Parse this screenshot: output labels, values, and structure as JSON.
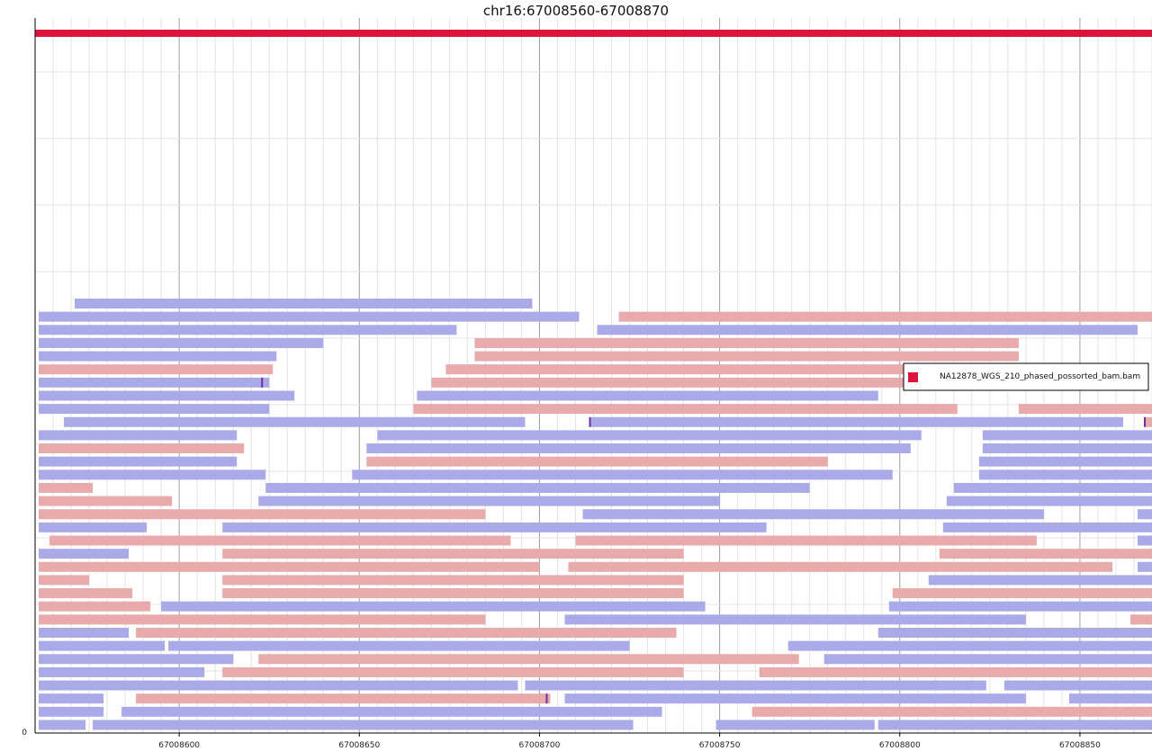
{
  "chart_data": {
    "type": "genome-read-pileup",
    "title": "chr16:67008560-67008870",
    "x_range": [
      67008560,
      67008870
    ],
    "x_ticks": [
      67008600,
      67008650,
      67008700,
      67008750,
      67008800,
      67008850
    ],
    "y_tick_label": "0",
    "legend": {
      "entries": [
        "NA12878_WGS_210_phased_possorted_bam.bam"
      ],
      "position": "right"
    },
    "colors": {
      "coverage": "#dc143c",
      "forward": "#aaaae8",
      "reverse": "#e8aaaa",
      "mismatch": "#7030a0",
      "grid_major": "#9e9e9e",
      "grid_minor": "#e4e4e4"
    },
    "coverage_span": [
      67008560,
      67008870
    ],
    "reads": [
      {
        "row": 0,
        "start": 67008571,
        "end": 67008698,
        "strand": "+"
      },
      {
        "row": 1,
        "start": 67008561,
        "end": 67008711,
        "strand": "+"
      },
      {
        "row": 1,
        "start": 67008722,
        "end": 67008870,
        "strand": "-"
      },
      {
        "row": 2,
        "start": 67008561,
        "end": 67008677,
        "strand": "+"
      },
      {
        "row": 2,
        "start": 67008716,
        "end": 67008866,
        "strand": "+"
      },
      {
        "row": 3,
        "start": 67008561,
        "end": 67008640,
        "strand": "+"
      },
      {
        "row": 3,
        "start": 67008682,
        "end": 67008833,
        "strand": "-"
      },
      {
        "row": 4,
        "start": 67008561,
        "end": 67008627,
        "strand": "+"
      },
      {
        "row": 4,
        "start": 67008682,
        "end": 67008833,
        "strand": "-"
      },
      {
        "row": 5,
        "start": 67008561,
        "end": 67008626,
        "strand": "-"
      },
      {
        "row": 5,
        "start": 67008674,
        "end": 67008816,
        "strand": "-"
      },
      {
        "row": 6,
        "start": 67008561,
        "end": 67008625,
        "strand": "+"
      },
      {
        "row": 6,
        "start": 67008670,
        "end": 67008821,
        "strand": "-"
      },
      {
        "row": 7,
        "start": 67008561,
        "end": 67008632,
        "strand": "+"
      },
      {
        "row": 7,
        "start": 67008666,
        "end": 67008794,
        "strand": "+"
      },
      {
        "row": 8,
        "start": 67008561,
        "end": 67008625,
        "strand": "+"
      },
      {
        "row": 8,
        "start": 67008665,
        "end": 67008816,
        "strand": "-"
      },
      {
        "row": 8,
        "start": 67008833,
        "end": 67008870,
        "strand": "-"
      },
      {
        "row": 9,
        "start": 67008568,
        "end": 67008696,
        "strand": "+"
      },
      {
        "row": 9,
        "start": 67008714,
        "end": 67008862,
        "strand": "+"
      },
      {
        "row": 9,
        "start": 67008868,
        "end": 67008870,
        "strand": "-"
      },
      {
        "row": 10,
        "start": 67008561,
        "end": 67008616,
        "strand": "+"
      },
      {
        "row": 10,
        "start": 67008655,
        "end": 67008806,
        "strand": "+"
      },
      {
        "row": 10,
        "start": 67008823,
        "end": 67008870,
        "strand": "+"
      },
      {
        "row": 11,
        "start": 67008561,
        "end": 67008618,
        "strand": "-"
      },
      {
        "row": 11,
        "start": 67008652,
        "end": 67008803,
        "strand": "+"
      },
      {
        "row": 11,
        "start": 67008823,
        "end": 67008870,
        "strand": "+"
      },
      {
        "row": 12,
        "start": 67008561,
        "end": 67008616,
        "strand": "+"
      },
      {
        "row": 12,
        "start": 67008652,
        "end": 67008780,
        "strand": "-"
      },
      {
        "row": 12,
        "start": 67008822,
        "end": 67008870,
        "strand": "+"
      },
      {
        "row": 13,
        "start": 67008561,
        "end": 67008624,
        "strand": "+"
      },
      {
        "row": 13,
        "start": 67008648,
        "end": 67008798,
        "strand": "+"
      },
      {
        "row": 13,
        "start": 67008822,
        "end": 67008870,
        "strand": "+"
      },
      {
        "row": 14,
        "start": 67008561,
        "end": 67008576,
        "strand": "-"
      },
      {
        "row": 14,
        "start": 67008624,
        "end": 67008775,
        "strand": "+"
      },
      {
        "row": 14,
        "start": 67008815,
        "end": 67008870,
        "strand": "+"
      },
      {
        "row": 15,
        "start": 67008561,
        "end": 67008598,
        "strand": "-"
      },
      {
        "row": 15,
        "start": 67008622,
        "end": 67008750,
        "strand": "+"
      },
      {
        "row": 15,
        "start": 67008813,
        "end": 67008870,
        "strand": "+"
      },
      {
        "row": 16,
        "start": 67008561,
        "end": 67008685,
        "strand": "-"
      },
      {
        "row": 16,
        "start": 67008712,
        "end": 67008840,
        "strand": "+"
      },
      {
        "row": 16,
        "start": 67008866,
        "end": 67008870,
        "strand": "+"
      },
      {
        "row": 17,
        "start": 67008561,
        "end": 67008591,
        "strand": "+"
      },
      {
        "row": 17,
        "start": 67008612,
        "end": 67008763,
        "strand": "+"
      },
      {
        "row": 17,
        "start": 67008812,
        "end": 67008870,
        "strand": "+"
      },
      {
        "row": 18,
        "start": 67008564,
        "end": 67008692,
        "strand": "-"
      },
      {
        "row": 18,
        "start": 67008710,
        "end": 67008838,
        "strand": "-"
      },
      {
        "row": 18,
        "start": 67008866,
        "end": 67008870,
        "strand": "+"
      },
      {
        "row": 19,
        "start": 67008561,
        "end": 67008586,
        "strand": "+"
      },
      {
        "row": 19,
        "start": 67008612,
        "end": 67008740,
        "strand": "-"
      },
      {
        "row": 19,
        "start": 67008811,
        "end": 67008870,
        "strand": "-"
      },
      {
        "row": 20,
        "start": 67008561,
        "end": 67008700,
        "strand": "-"
      },
      {
        "row": 20,
        "start": 67008708,
        "end": 67008859,
        "strand": "-"
      },
      {
        "row": 20,
        "start": 67008866,
        "end": 67008870,
        "strand": "+"
      },
      {
        "row": 21,
        "start": 67008561,
        "end": 67008575,
        "strand": "-"
      },
      {
        "row": 21,
        "start": 67008612,
        "end": 67008740,
        "strand": "-"
      },
      {
        "row": 21,
        "start": 67008808,
        "end": 67008870,
        "strand": "+"
      },
      {
        "row": 22,
        "start": 67008561,
        "end": 67008587,
        "strand": "-"
      },
      {
        "row": 22,
        "start": 67008612,
        "end": 67008740,
        "strand": "-"
      },
      {
        "row": 22,
        "start": 67008798,
        "end": 67008870,
        "strand": "-"
      },
      {
        "row": 23,
        "start": 67008561,
        "end": 67008592,
        "strand": "-"
      },
      {
        "row": 23,
        "start": 67008595,
        "end": 67008746,
        "strand": "+"
      },
      {
        "row": 23,
        "start": 67008797,
        "end": 67008870,
        "strand": "+"
      },
      {
        "row": 24,
        "start": 67008561,
        "end": 67008685,
        "strand": "-"
      },
      {
        "row": 24,
        "start": 67008707,
        "end": 67008835,
        "strand": "+"
      },
      {
        "row": 24,
        "start": 67008864,
        "end": 67008870,
        "strand": "-"
      },
      {
        "row": 25,
        "start": 67008561,
        "end": 67008586,
        "strand": "+"
      },
      {
        "row": 25,
        "start": 67008588,
        "end": 67008738,
        "strand": "-"
      },
      {
        "row": 25,
        "start": 67008794,
        "end": 67008870,
        "strand": "+"
      },
      {
        "row": 26,
        "start": 67008561,
        "end": 67008596,
        "strand": "+"
      },
      {
        "row": 26,
        "start": 67008597,
        "end": 67008725,
        "strand": "+"
      },
      {
        "row": 26,
        "start": 67008769,
        "end": 67008870,
        "strand": "+"
      },
      {
        "row": 27,
        "start": 67008561,
        "end": 67008615,
        "strand": "+"
      },
      {
        "row": 27,
        "start": 67008622,
        "end": 67008772,
        "strand": "-"
      },
      {
        "row": 27,
        "start": 67008779,
        "end": 67008870,
        "strand": "+"
      },
      {
        "row": 28,
        "start": 67008561,
        "end": 67008607,
        "strand": "+"
      },
      {
        "row": 28,
        "start": 67008612,
        "end": 67008740,
        "strand": "-"
      },
      {
        "row": 28,
        "start": 67008761,
        "end": 67008870,
        "strand": "-"
      },
      {
        "row": 29,
        "start": 67008561,
        "end": 67008694,
        "strand": "+"
      },
      {
        "row": 29,
        "start": 67008696,
        "end": 67008824,
        "strand": "+"
      },
      {
        "row": 29,
        "start": 67008829,
        "end": 67008870,
        "strand": "+"
      },
      {
        "row": 30,
        "start": 67008561,
        "end": 67008579,
        "strand": "+"
      },
      {
        "row": 30,
        "start": 67008588,
        "end": 67008703,
        "strand": "-"
      },
      {
        "row": 30,
        "start": 67008707,
        "end": 67008835,
        "strand": "+"
      },
      {
        "row": 30,
        "start": 67008847,
        "end": 67008870,
        "strand": "+"
      },
      {
        "row": 31,
        "start": 67008561,
        "end": 67008579,
        "strand": "+"
      },
      {
        "row": 31,
        "start": 67008584,
        "end": 67008734,
        "strand": "+"
      },
      {
        "row": 31,
        "start": 67008759,
        "end": 67008870,
        "strand": "-"
      },
      {
        "row": 32,
        "start": 67008561,
        "end": 67008574,
        "strand": "+"
      },
      {
        "row": 32,
        "start": 67008576,
        "end": 67008726,
        "strand": "+"
      },
      {
        "row": 32,
        "start": 67008749,
        "end": 67008793,
        "strand": "+"
      },
      {
        "row": 32,
        "start": 67008794,
        "end": 67008870,
        "strand": "+"
      }
    ],
    "mismatches": [
      {
        "row": 6,
        "pos": 67008623
      },
      {
        "row": 9,
        "pos": 67008714
      },
      {
        "row": 9,
        "pos": 67008868
      },
      {
        "row": 30,
        "pos": 67008702
      }
    ]
  }
}
